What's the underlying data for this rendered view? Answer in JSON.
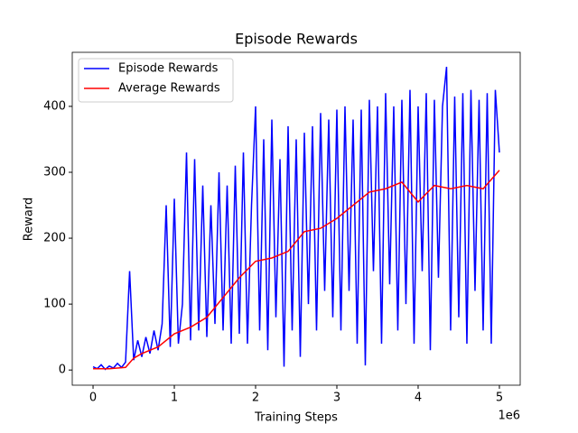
{
  "chart_data": {
    "type": "line",
    "title": "Episode Rewards",
    "x_label": "Training Steps",
    "y_label": "Reward",
    "x_offset_label": "1e6",
    "xlim": [
      -256000,
      5256000
    ],
    "ylim": [
      -23,
      482
    ],
    "xticks": [
      0,
      {
        "value": 1000000,
        "label": "1"
      },
      {
        "value": 2000000,
        "label": "2"
      },
      {
        "value": 3000000,
        "label": "3"
      },
      {
        "value": 4000000,
        "label": "4"
      },
      {
        "value": 5000000,
        "label": "5"
      }
    ],
    "yticks": [
      0,
      100,
      200,
      300,
      400
    ],
    "legend": "upper left",
    "series": [
      {
        "name": "Episode Rewards",
        "color": "#0000ff",
        "x": [
          0,
          50000,
          100000,
          150000,
          200000,
          250000,
          300000,
          350000,
          400000,
          450000,
          500000,
          550000,
          600000,
          650000,
          700000,
          750000,
          800000,
          850000,
          900000,
          950000,
          1000000,
          1050000,
          1100000,
          1150000,
          1200000,
          1250000,
          1300000,
          1350000,
          1400000,
          1450000,
          1500000,
          1550000,
          1600000,
          1650000,
          1700000,
          1750000,
          1800000,
          1850000,
          1900000,
          1950000,
          2000000,
          2050000,
          2100000,
          2150000,
          2200000,
          2250000,
          2300000,
          2350000,
          2400000,
          2450000,
          2500000,
          2550000,
          2600000,
          2650000,
          2700000,
          2750000,
          2800000,
          2850000,
          2900000,
          2950000,
          3000000,
          3050000,
          3100000,
          3150000,
          3200000,
          3250000,
          3300000,
          3350000,
          3400000,
          3450000,
          3500000,
          3550000,
          3600000,
          3650000,
          3700000,
          3750000,
          3800000,
          3850000,
          3900000,
          3950000,
          4000000,
          4050000,
          4100000,
          4150000,
          4200000,
          4250000,
          4300000,
          4350000,
          4400000,
          4450000,
          4500000,
          4550000,
          4600000,
          4650000,
          4700000,
          4750000,
          4800000,
          4850000,
          4900000,
          4950000,
          5000000
        ],
        "values": [
          5,
          2,
          8,
          1,
          6,
          3,
          10,
          4,
          12,
          150,
          15,
          45,
          20,
          50,
          25,
          60,
          30,
          70,
          250,
          35,
          260,
          40,
          100,
          330,
          45,
          320,
          60,
          280,
          50,
          250,
          70,
          300,
          60,
          280,
          40,
          310,
          55,
          330,
          40,
          250,
          400,
          60,
          350,
          30,
          380,
          80,
          320,
          5,
          370,
          60,
          350,
          20,
          360,
          100,
          370,
          60,
          390,
          120,
          380,
          80,
          395,
          60,
          400,
          120,
          380,
          40,
          395,
          7,
          410,
          150,
          400,
          40,
          420,
          130,
          400,
          60,
          410,
          100,
          425,
          40,
          400,
          150,
          420,
          30,
          410,
          140,
          400,
          460,
          60,
          415,
          80,
          420,
          40,
          425,
          120,
          410,
          60,
          420,
          40,
          425,
          330
        ]
      },
      {
        "name": "Average Rewards",
        "color": "#ff0000",
        "x": [
          0,
          200000,
          400000,
          500000,
          600000,
          800000,
          1000000,
          1200000,
          1400000,
          1600000,
          1800000,
          2000000,
          2200000,
          2400000,
          2600000,
          2800000,
          3000000,
          3200000,
          3400000,
          3600000,
          3800000,
          4000000,
          4200000,
          4400000,
          4600000,
          4800000,
          5000000
        ],
        "values": [
          2,
          2,
          4,
          18,
          25,
          35,
          55,
          65,
          80,
          110,
          140,
          165,
          170,
          180,
          210,
          215,
          230,
          250,
          270,
          275,
          285,
          255,
          280,
          275,
          280,
          275,
          303
        ]
      }
    ]
  }
}
